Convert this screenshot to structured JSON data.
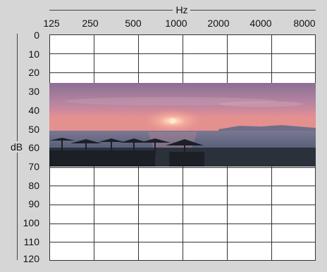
{
  "axis": {
    "frequency_label": "Hz",
    "level_label": "dB",
    "frequencies": [
      "125",
      "250",
      "500",
      "1000",
      "2000",
      "4000",
      "8000"
    ],
    "levels": [
      "0",
      "10",
      "20",
      "30",
      "40",
      "50",
      "60",
      "70",
      "80",
      "90",
      "100",
      "110",
      "120"
    ]
  },
  "photo": {
    "subject": "sunset-over-beach-with-umbrellas",
    "colors": {
      "sky_top": "#8a6f92",
      "sky_mid": "#c98aa2",
      "horizon": "#e08a8c",
      "sun": "#ffe3c0",
      "sea": "#5a6b84",
      "shore": "#2a2f38"
    }
  }
}
